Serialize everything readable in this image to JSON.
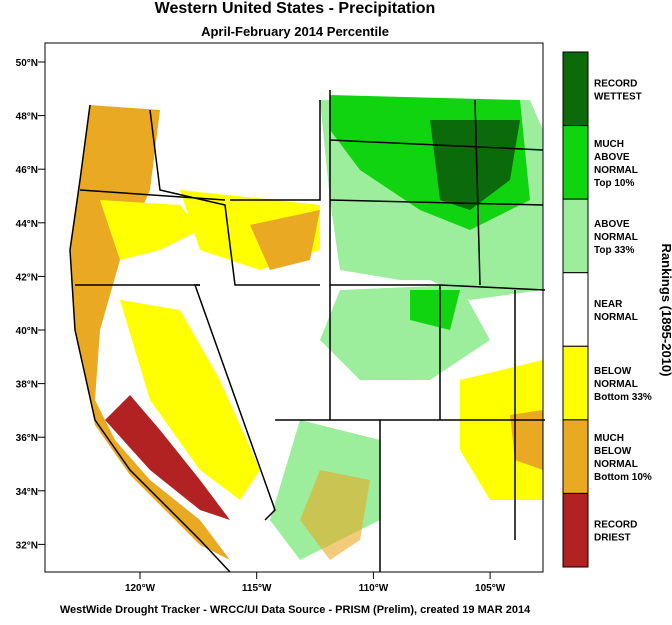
{
  "header": {
    "title": "Western United States - Precipitation",
    "subtitle": "April-February 2014 Percentile"
  },
  "lat_labels": [
    "50°N",
    "48°N",
    "46°N",
    "44°N",
    "42°N",
    "40°N",
    "38°N",
    "36°N",
    "34°N",
    "32°N"
  ],
  "lon_labels": [
    "120°W",
    "115°W",
    "110°W",
    "105°W"
  ],
  "legend": {
    "title": "Rankings (1895-2010)",
    "items": [
      {
        "lines": [
          "RECORD",
          "WETTEST"
        ],
        "color": "#0b6b0b"
      },
      {
        "lines": [
          "MUCH",
          "ABOVE",
          "NORMAL",
          "Top 10%"
        ],
        "color": "#11d411"
      },
      {
        "lines": [
          "ABOVE",
          "NORMAL",
          "Top 33%"
        ],
        "color": "#9cee9c"
      },
      {
        "lines": [
          "NEAR",
          "NORMAL"
        ],
        "color": "#ffffff"
      },
      {
        "lines": [
          "BELOW",
          "NORMAL",
          "Bottom 33%"
        ],
        "color": "#ffff00"
      },
      {
        "lines": [
          "MUCH",
          "BELOW",
          "NORMAL",
          "Bottom 10%"
        ],
        "color": "#e9a923"
      },
      {
        "lines": [
          "RECORD",
          "DRIEST"
        ],
        "color": "#b22222"
      }
    ]
  },
  "footer": "WestWide Drought Tracker - WRCC/UI  Data Source - PRISM (Prelim), created 19 MAR 2014"
}
